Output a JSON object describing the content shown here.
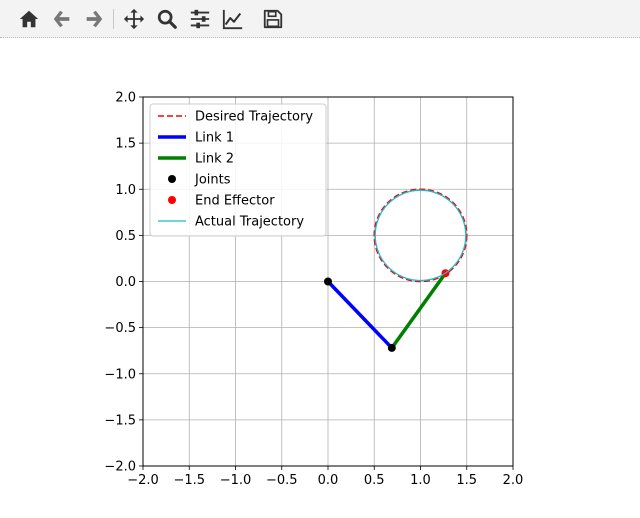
{
  "toolbar": {
    "buttons": [
      {
        "name": "home-button",
        "icon": "home-icon",
        "tooltip": "Reset original view"
      },
      {
        "name": "back-button",
        "icon": "arrow-left-icon",
        "tooltip": "Back to previous view"
      },
      {
        "name": "forward-button",
        "icon": "arrow-right-icon",
        "tooltip": "Forward to next view"
      },
      {
        "name": "pan-button",
        "icon": "move-icon",
        "tooltip": "Pan axes"
      },
      {
        "name": "zoom-button",
        "icon": "magnifier-icon",
        "tooltip": "Zoom to rectangle"
      },
      {
        "name": "configure-subplots-button",
        "icon": "sliders-icon",
        "tooltip": "Configure subplots"
      },
      {
        "name": "edit-axis-button",
        "icon": "line-chart-icon",
        "tooltip": "Edit axis, curve and image parameters"
      },
      {
        "name": "save-button",
        "icon": "floppy-disk-icon",
        "tooltip": "Save the figure"
      }
    ],
    "icon_color": "#333333"
  },
  "chart_data": {
    "type": "line",
    "xlim": [
      -2.0,
      2.0
    ],
    "ylim": [
      -2.0,
      2.0
    ],
    "xticks": [
      "−2.0",
      "−1.5",
      "−1.0",
      "−0.5",
      "0.0",
      "0.5",
      "1.0",
      "1.5",
      "2.0"
    ],
    "yticks": [
      "2.0",
      "1.5",
      "1.0",
      "0.5",
      "0.0",
      "−0.5",
      "−1.0",
      "−1.5",
      "−2.0"
    ],
    "xtick_values": [
      -2.0,
      -1.5,
      -1.0,
      -0.5,
      0.0,
      0.5,
      1.0,
      1.5,
      2.0
    ],
    "ytick_values": [
      2.0,
      1.5,
      1.0,
      0.5,
      0.0,
      -0.5,
      -1.0,
      -1.5,
      -2.0
    ],
    "grid": true,
    "legend_location": "upper-left",
    "series": [
      {
        "name": "Desired Trajectory",
        "kind": "circle",
        "style": "dashed",
        "color": "#ff0000",
        "center": [
          1.0,
          0.5
        ],
        "radius": 0.5
      },
      {
        "name": "Link 1",
        "kind": "segment",
        "color": "#0000ff",
        "points": [
          [
            0.0,
            0.0
          ],
          [
            0.69,
            -0.72
          ]
        ]
      },
      {
        "name": "Link 2",
        "kind": "segment",
        "color": "#008000",
        "points": [
          [
            0.69,
            -0.72
          ],
          [
            1.27,
            0.09
          ]
        ]
      },
      {
        "name": "Joints",
        "kind": "points",
        "color": "#000000",
        "points": [
          [
            0.0,
            0.0
          ],
          [
            0.69,
            -0.72
          ]
        ]
      },
      {
        "name": "End Effector",
        "kind": "points",
        "color": "#ff0000",
        "points": [
          [
            1.27,
            0.09
          ]
        ]
      },
      {
        "name": "Actual Trajectory",
        "kind": "circle",
        "style": "solid",
        "color": "#17becf",
        "center": [
          1.0,
          0.5
        ],
        "radius": 0.49
      }
    ]
  }
}
